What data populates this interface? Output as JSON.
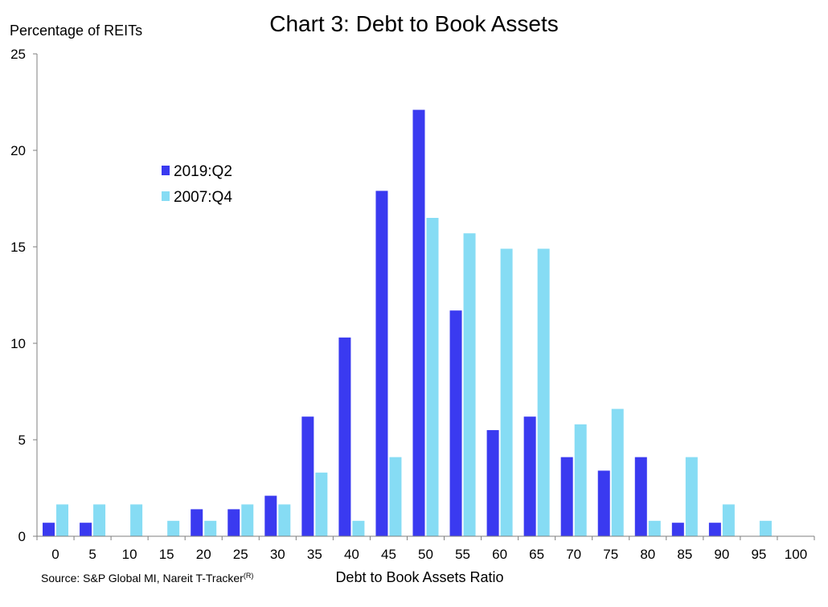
{
  "chart_data": {
    "type": "bar",
    "title": "Chart 3: Debt to Book Assets",
    "ylabel": "Percentage of REITs",
    "xlabel": "Debt to Book Assets Ratio",
    "source": {
      "text": "Source: S&P Global MI, Nareit T-Tracker",
      "superscript": "(R)"
    },
    "categories": [
      "0",
      "5",
      "10",
      "15",
      "20",
      "25",
      "30",
      "35",
      "40",
      "45",
      "50",
      "55",
      "60",
      "65",
      "70",
      "75",
      "80",
      "85",
      "90",
      "95",
      "100"
    ],
    "ylim": [
      0,
      25
    ],
    "yticks": [
      "0",
      "5",
      "10",
      "15",
      "20",
      "25"
    ],
    "grid": false,
    "legend_position": "upper-left",
    "series": [
      {
        "name": "2019:Q2",
        "color": "#3a3af0",
        "values": [
          0.7,
          0.7,
          0,
          0,
          1.4,
          1.4,
          2.1,
          6.2,
          10.3,
          17.9,
          22.1,
          11.7,
          5.5,
          6.2,
          4.1,
          3.4,
          4.1,
          0.7,
          0.7,
          0,
          0
        ]
      },
      {
        "name": "2007:Q4",
        "color": "#86dcf4",
        "values": [
          1.65,
          1.65,
          1.65,
          0.8,
          0.8,
          1.65,
          1.65,
          3.3,
          0.8,
          4.1,
          16.5,
          15.7,
          14.9,
          14.9,
          5.8,
          6.6,
          0.8,
          4.1,
          1.65,
          0.8,
          0
        ]
      }
    ]
  }
}
